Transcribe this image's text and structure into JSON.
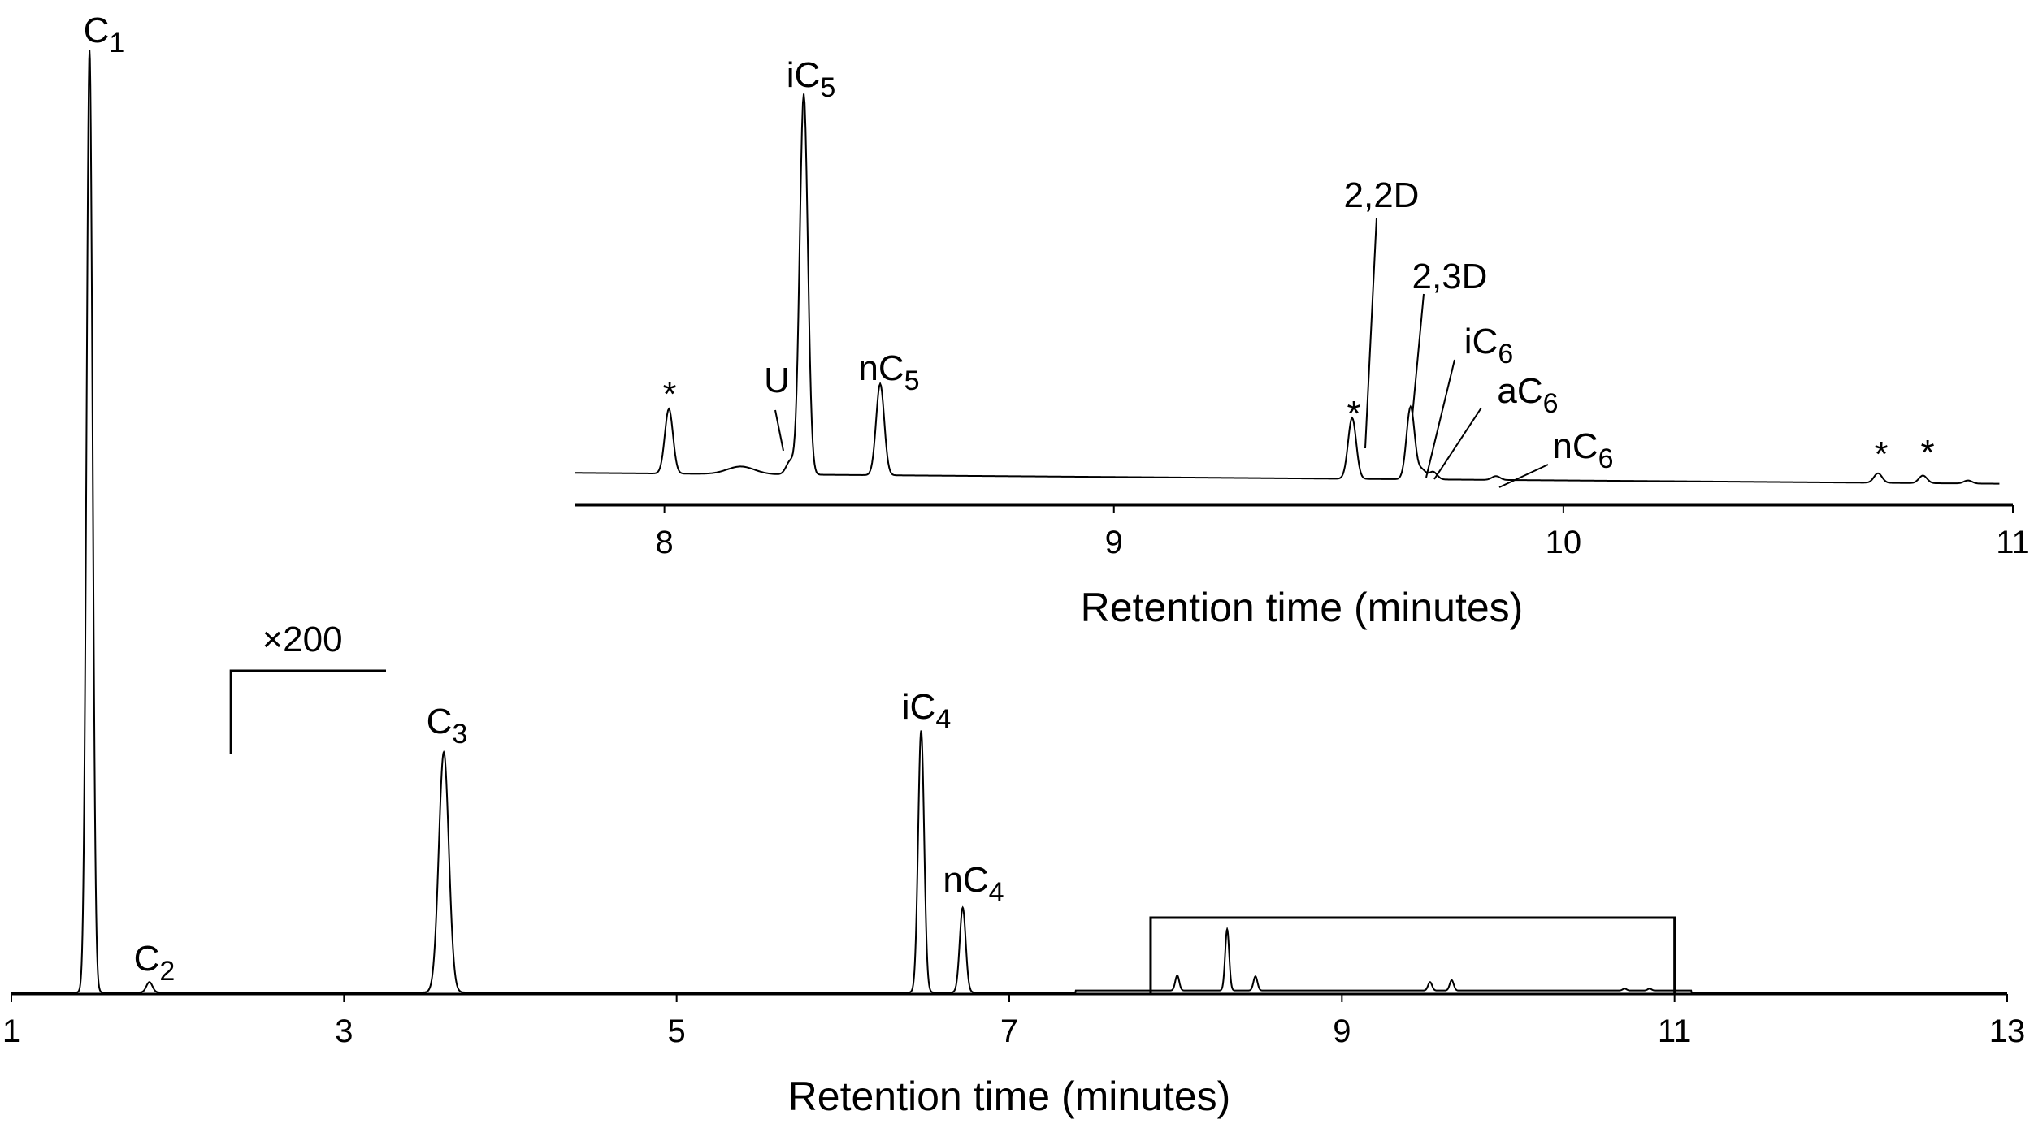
{
  "chart_data": [
    {
      "type": "line",
      "xlabel": "Retention time (minutes)",
      "ylabel": "",
      "xlim": [
        1,
        13
      ],
      "ylim": [
        0,
        100
      ],
      "xticks": [
        "1",
        "3",
        "5",
        "7",
        "9",
        "11",
        "13"
      ],
      "grid": false,
      "peaks": [
        {
          "label": "C",
          "sub": "1",
          "x": 1.47,
          "y": 100
        },
        {
          "label": "C",
          "sub": "2",
          "x": 1.83,
          "y": 1.1
        },
        {
          "label": "C",
          "sub": "3",
          "x": 3.6,
          "y": 25.5
        },
        {
          "label": "iC",
          "sub": "4",
          "x": 6.47,
          "y": 27.8
        },
        {
          "label": "nC",
          "sub": "4",
          "x": 6.72,
          "y": 9.0
        }
      ],
      "annotation": "×200",
      "scale_change_x": 2.32,
      "inset_window": {
        "x": [
          7.85,
          11.0
        ]
      }
    },
    {
      "type": "line",
      "xlabel": "Retention time (minutes)",
      "ylabel": "",
      "xlim": [
        7.8,
        11.0
      ],
      "ylim": [
        0,
        100
      ],
      "xticks": [
        "8",
        "9",
        "10",
        "11"
      ],
      "grid": false,
      "peaks": [
        {
          "label": "*",
          "sub": "",
          "x": 8.01,
          "y": 17
        },
        {
          "label": "U",
          "sub": "",
          "x": 8.28,
          "y": 5
        },
        {
          "label": "iC",
          "sub": "5",
          "x": 8.31,
          "y": 100
        },
        {
          "label": "nC",
          "sub": "5",
          "x": 8.48,
          "y": 24
        },
        {
          "label": "*",
          "sub": "",
          "x": 9.53,
          "y": 16
        },
        {
          "label": "2,2D",
          "sub": "",
          "x": 9.66,
          "y": 19
        },
        {
          "label": "2,3D",
          "sub": "",
          "x": 9.68,
          "y": 3
        },
        {
          "label": "iC",
          "sub": "6",
          "x": 9.7,
          "y": 2.5
        },
        {
          "label": "aC",
          "sub": "6",
          "x": 9.73,
          "y": 1.5
        },
        {
          "label": "nC",
          "sub": "6",
          "x": 9.85,
          "y": 1
        },
        {
          "label": "*",
          "sub": "",
          "x": 10.7,
          "y": 2.5
        },
        {
          "label": "*",
          "sub": "",
          "x": 10.8,
          "y": 2
        }
      ]
    }
  ]
}
